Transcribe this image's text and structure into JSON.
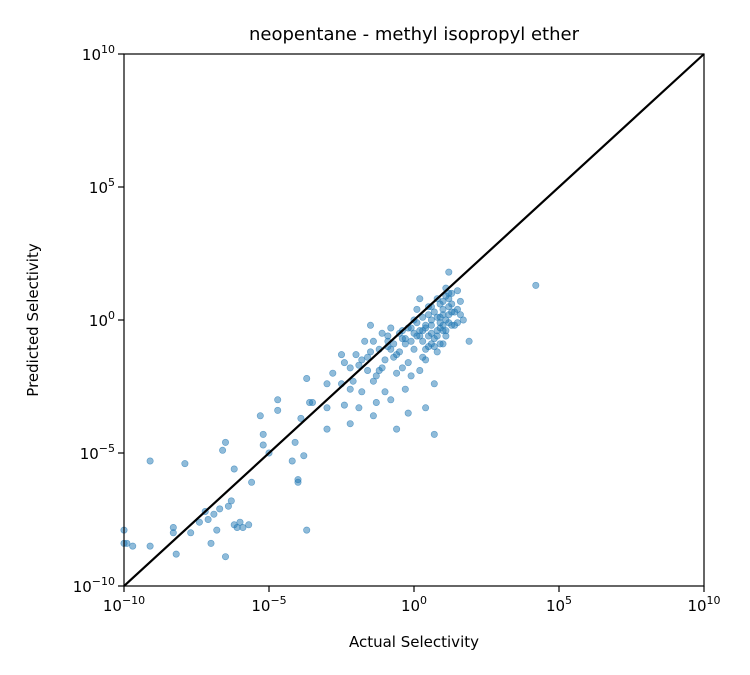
{
  "chart_data": {
    "type": "scatter",
    "title": "neopentane - methyl isopropyl ether",
    "xlabel": "Actual Selectivity",
    "ylabel": "Predicted Selectivity",
    "x_scale": "log",
    "y_scale": "log",
    "xlim": [
      1e-10,
      10000000000.0
    ],
    "ylim": [
      1e-10,
      10000000000.0
    ],
    "grid": false,
    "x_ticks": [
      {
        "base": "10",
        "exp": "−10"
      },
      {
        "base": "10",
        "exp": "−5"
      },
      {
        "base": "10",
        "exp": "0"
      },
      {
        "base": "10",
        "exp": "5"
      },
      {
        "base": "10",
        "exp": "10"
      }
    ],
    "y_ticks": [
      {
        "base": "10",
        "exp": "−10"
      },
      {
        "base": "10",
        "exp": "−5"
      },
      {
        "base": "10",
        "exp": "0"
      },
      {
        "base": "10",
        "exp": "5"
      },
      {
        "base": "10",
        "exp": "10"
      }
    ],
    "reference_line": {
      "type": "y=x",
      "color": "#000000"
    },
    "series": [
      {
        "color": "#1f77b4",
        "points": [
          [
            -10.0,
            -7.9
          ],
          [
            -10.0,
            -8.4
          ],
          [
            -9.9,
            -8.4
          ],
          [
            -9.7,
            -8.5
          ],
          [
            -9.1,
            -8.5
          ],
          [
            -9.1,
            -5.3
          ],
          [
            -8.3,
            -7.8
          ],
          [
            -8.3,
            -8.0
          ],
          [
            -8.2,
            -8.8
          ],
          [
            -7.9,
            -5.4
          ],
          [
            -7.7,
            -8.0
          ],
          [
            -7.4,
            -7.6
          ],
          [
            -7.2,
            -7.2
          ],
          [
            -7.1,
            -7.5
          ],
          [
            -7.0,
            -8.4
          ],
          [
            -6.9,
            -7.3
          ],
          [
            -6.8,
            -7.9
          ],
          [
            -6.7,
            -7.1
          ],
          [
            -6.6,
            -4.9
          ],
          [
            -6.5,
            -4.6
          ],
          [
            -6.5,
            -8.9
          ],
          [
            -6.4,
            -7.0
          ],
          [
            -6.3,
            -6.8
          ],
          [
            -6.2,
            -7.7
          ],
          [
            -6.2,
            -5.6
          ],
          [
            -6.1,
            -7.8
          ],
          [
            -6.0,
            -7.6
          ],
          [
            -5.9,
            -7.8
          ],
          [
            -5.7,
            -7.7
          ],
          [
            -5.6,
            -6.1
          ],
          [
            -5.3,
            -3.6
          ],
          [
            -5.2,
            -4.3
          ],
          [
            -5.2,
            -4.7
          ],
          [
            -5.0,
            -5.0
          ],
          [
            -4.7,
            -3.4
          ],
          [
            -4.7,
            -3.0
          ],
          [
            -4.2,
            -5.3
          ],
          [
            -4.1,
            -4.6
          ],
          [
            -4.0,
            -6.1
          ],
          [
            -4.0,
            -6.0
          ],
          [
            -3.9,
            -3.7
          ],
          [
            -3.8,
            -5.1
          ],
          [
            -3.7,
            -7.9
          ],
          [
            -3.7,
            -2.2
          ],
          [
            -3.6,
            -3.1
          ],
          [
            -3.5,
            -3.1
          ],
          [
            -3.0,
            -3.3
          ],
          [
            -3.0,
            -2.4
          ],
          [
            -3.0,
            -4.1
          ],
          [
            -2.8,
            -2.0
          ],
          [
            -2.5,
            -1.3
          ],
          [
            -2.4,
            -1.6
          ],
          [
            -2.2,
            -1.8
          ],
          [
            -2.2,
            -2.6
          ],
          [
            -2.1,
            -2.3
          ],
          [
            -2.0,
            -1.3
          ],
          [
            -1.8,
            -1.5
          ],
          [
            -1.6,
            -1.4
          ],
          [
            -1.5,
            -1.2
          ],
          [
            -1.4,
            -2.3
          ],
          [
            -1.3,
            -2.1
          ],
          [
            -1.2,
            -1.9
          ],
          [
            -1.1,
            -1.8
          ],
          [
            -1.0,
            -1.5
          ],
          [
            -0.9,
            -0.8
          ],
          [
            -0.8,
            -1.1
          ],
          [
            -0.7,
            -0.9
          ],
          [
            -0.6,
            -1.3
          ],
          [
            -0.5,
            -0.5
          ],
          [
            -0.4,
            -0.7
          ],
          [
            -0.3,
            -0.9
          ],
          [
            -0.2,
            -0.3
          ],
          [
            -0.1,
            -0.8
          ],
          [
            0.0,
            -0.5
          ],
          [
            0.1,
            -0.1
          ],
          [
            0.2,
            -0.6
          ],
          [
            0.3,
            0.1
          ],
          [
            0.4,
            -0.3
          ],
          [
            0.5,
            -0.6
          ],
          [
            0.6,
            0.0
          ],
          [
            0.7,
            0.3
          ],
          [
            0.8,
            0.1
          ],
          [
            0.9,
            0.6
          ],
          [
            1.0,
            0.2
          ],
          [
            1.1,
            -0.4
          ],
          [
            1.2,
            0.5
          ],
          [
            1.3,
            -0.2
          ],
          [
            1.4,
            0.3
          ],
          [
            1.5,
            -0.1
          ],
          [
            1.6,
            0.7
          ],
          [
            1.7,
            0.0
          ],
          [
            0.8,
            -1.2
          ],
          [
            0.9,
            -0.3
          ],
          [
            1.0,
            -0.9
          ],
          [
            1.1,
            0.9
          ],
          [
            0.5,
            -1.0
          ],
          [
            0.3,
            -1.4
          ],
          [
            0.2,
            0.8
          ],
          [
            0.6,
            0.5
          ],
          [
            0.7,
            -0.7
          ],
          [
            -0.4,
            -1.8
          ],
          [
            -0.6,
            -2.0
          ],
          [
            -0.9,
            -1.0
          ],
          [
            -1.1,
            -0.5
          ],
          [
            -1.5,
            -0.2
          ],
          [
            -1.7,
            -0.8
          ],
          [
            -0.2,
            -1.6
          ],
          [
            0.0,
            -1.1
          ],
          [
            0.4,
            -0.2
          ],
          [
            0.1,
            0.4
          ],
          [
            -2.2,
            -3.9
          ],
          [
            -1.9,
            -3.3
          ],
          [
            -1.4,
            -3.6
          ],
          [
            -0.8,
            -3.0
          ],
          [
            -0.3,
            -2.6
          ],
          [
            -1.0,
            -2.7
          ],
          [
            -0.6,
            -4.1
          ],
          [
            -1.3,
            -3.1
          ],
          [
            -0.2,
            -3.5
          ],
          [
            0.4,
            -3.3
          ],
          [
            -0.1,
            -2.1
          ],
          [
            0.7,
            -2.4
          ],
          [
            0.2,
            -1.9
          ],
          [
            1.2,
            0.8
          ],
          [
            0.9,
            0.1
          ],
          [
            1.3,
            1.0
          ],
          [
            1.5,
            0.4
          ],
          [
            1.0,
            -0.2
          ],
          [
            0.6,
            -0.5
          ],
          [
            0.3,
            -0.8
          ],
          [
            -0.7,
            -1.4
          ],
          [
            0.0,
            0.0
          ],
          [
            0.5,
            0.2
          ],
          [
            0.8,
            -0.4
          ],
          [
            1.1,
            0.0
          ],
          [
            0.1,
            -0.6
          ],
          [
            -0.4,
            -0.4
          ],
          [
            -0.9,
            -0.6
          ],
          [
            -0.8,
            -0.3
          ],
          [
            -1.2,
            -1.1
          ],
          [
            -1.6,
            -1.9
          ],
          [
            -1.8,
            -2.7
          ],
          [
            -2.5,
            -2.4
          ],
          [
            -2.4,
            -3.2
          ],
          [
            0.7,
            -4.3
          ],
          [
            -1.9,
            -1.7
          ],
          [
            0.9,
            -0.9
          ],
          [
            1.2,
            0.2
          ],
          [
            0.6,
            -0.2
          ],
          [
            0.4,
            -1.5
          ],
          [
            0.2,
            -0.4
          ],
          [
            -0.5,
            -1.2
          ],
          [
            1.5,
            1.1
          ],
          [
            1.3,
            0.6
          ],
          [
            0.8,
            0.8
          ],
          [
            0.5,
            0.5
          ],
          [
            1.0,
            0.4
          ],
          [
            0.3,
            -0.4
          ],
          [
            -0.1,
            -0.3
          ],
          [
            0.4,
            -1.1
          ],
          [
            1.1,
            -0.6
          ],
          [
            1.4,
            -0.2
          ],
          [
            1.9,
            -0.8
          ],
          [
            1.6,
            0.2
          ],
          [
            1.2,
            1.0
          ],
          [
            1.0,
            0.7
          ],
          [
            0.7,
            -1.0
          ],
          [
            -1.4,
            -0.8
          ],
          [
            -0.3,
            -0.7
          ],
          [
            0.6,
            -0.9
          ],
          [
            0.8,
            -0.6
          ],
          [
            1.2,
            -0.1
          ],
          [
            0.9,
            -0.1
          ],
          [
            1.3,
            0.3
          ],
          [
            1.0,
            -0.4
          ],
          [
            1.1,
            1.2
          ],
          [
            1.2,
            1.8
          ],
          [
            4.2,
            1.3
          ]
        ]
      }
    ]
  }
}
